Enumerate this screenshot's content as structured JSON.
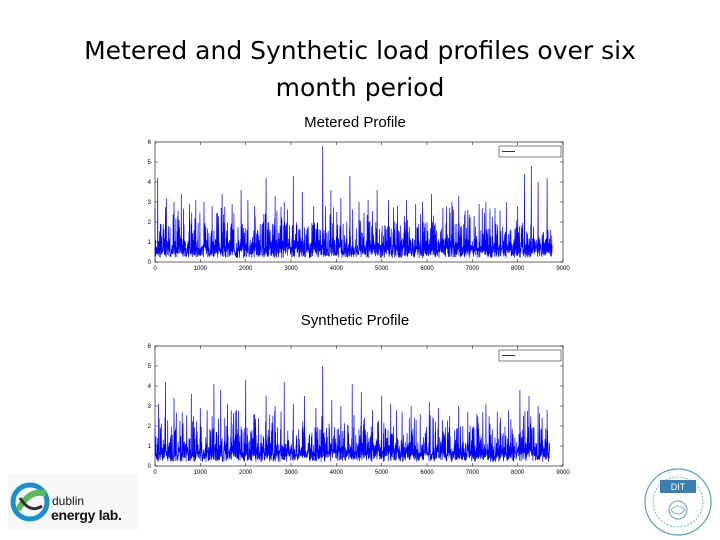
{
  "slide": {
    "title": "Metered and Synthetic load profiles over six month period"
  },
  "logos": {
    "dublin": "dublin",
    "energy_lab": "energy lab.",
    "dit": "DIT"
  },
  "colors": {
    "series": "#0000ff",
    "axis": "#000000"
  },
  "chart_data": [
    {
      "type": "line",
      "title": "Metered Profile",
      "xlabel": "",
      "ylabel": "",
      "xlim": [
        0,
        9000
      ],
      "ylim": [
        0,
        6
      ],
      "xticks": [
        "0",
        "1000",
        "2000",
        "3000",
        "4000",
        "5000",
        "6000",
        "7000",
        "8000",
        "9000"
      ],
      "yticks": [
        "0",
        "1",
        "2",
        "3",
        "4",
        "5",
        "6"
      ],
      "legend": {
        "position": "top-right",
        "entries": [
          ""
        ]
      },
      "series": [
        {
          "name": "",
          "end_x": 8760,
          "peaks": [
            [
              60,
              4.2
            ],
            [
              250,
              3.2
            ],
            [
              420,
              3.0
            ],
            [
              580,
              3.4
            ],
            [
              760,
              2.9
            ],
            [
              900,
              3.1
            ],
            [
              1080,
              3.0
            ],
            [
              1260,
              2.8
            ],
            [
              1480,
              3.4
            ],
            [
              1700,
              2.9
            ],
            [
              1900,
              3.6
            ],
            [
              2050,
              3.1
            ],
            [
              2200,
              2.8
            ],
            [
              2450,
              4.2
            ],
            [
              2650,
              3.3
            ],
            [
              2850,
              3.0
            ],
            [
              3050,
              4.3
            ],
            [
              3250,
              3.5
            ],
            [
              3500,
              2.8
            ],
            [
              3700,
              5.8
            ],
            [
              3880,
              3.6
            ],
            [
              4100,
              3.2
            ],
            [
              4300,
              4.3
            ],
            [
              4500,
              3.0
            ],
            [
              4700,
              3.1
            ],
            [
              4900,
              3.6
            ],
            [
              5150,
              3.1
            ],
            [
              5350,
              2.8
            ],
            [
              5550,
              3.1
            ],
            [
              5750,
              2.9
            ],
            [
              5900,
              3.0
            ],
            [
              6100,
              3.4
            ],
            [
              6350,
              2.7
            ],
            [
              6550,
              3.0
            ],
            [
              6700,
              3.3
            ],
            [
              6900,
              2.6
            ],
            [
              7150,
              2.9
            ],
            [
              7300,
              3.0
            ],
            [
              7500,
              2.7
            ],
            [
              7750,
              3.0
            ],
            [
              8000,
              2.8
            ],
            [
              8150,
              4.4
            ],
            [
              8300,
              4.8
            ],
            [
              8450,
              4.0
            ],
            [
              8650,
              4.2
            ]
          ]
        }
      ]
    },
    {
      "type": "line",
      "title": "Synthetic Profile",
      "xlabel": "",
      "ylabel": "",
      "xlim": [
        0,
        9000
      ],
      "ylim": [
        0,
        6
      ],
      "xticks": [
        "0",
        "1000",
        "2000",
        "3000",
        "4000",
        "5000",
        "6000",
        "7000",
        "8000",
        "9000"
      ],
      "yticks": [
        "0",
        "1",
        "2",
        "3",
        "4",
        "5",
        "6"
      ],
      "legend": {
        "position": "top-right",
        "entries": [
          ""
        ]
      },
      "series": [
        {
          "name": "",
          "end_x": 8700,
          "peaks": [
            [
              80,
              3.1
            ],
            [
              230,
              4.2
            ],
            [
              420,
              3.4
            ],
            [
              600,
              2.7
            ],
            [
              800,
              3.6
            ],
            [
              1000,
              2.9
            ],
            [
              1300,
              4.1
            ],
            [
              1450,
              3.8
            ],
            [
              1600,
              3.1
            ],
            [
              1800,
              2.8
            ],
            [
              2000,
              4.3
            ],
            [
              2200,
              2.6
            ],
            [
              2450,
              3.5
            ],
            [
              2650,
              3.0
            ],
            [
              2850,
              4.2
            ],
            [
              3050,
              3.1
            ],
            [
              3300,
              3.5
            ],
            [
              3550,
              2.9
            ],
            [
              3700,
              5.0
            ],
            [
              3900,
              3.3
            ],
            [
              4100,
              3.0
            ],
            [
              4350,
              4.1
            ],
            [
              4550,
              3.7
            ],
            [
              4800,
              2.8
            ],
            [
              5000,
              3.5
            ],
            [
              5200,
              3.1
            ],
            [
              5450,
              2.7
            ],
            [
              5650,
              3.0
            ],
            [
              5850,
              2.6
            ],
            [
              6050,
              3.2
            ],
            [
              6250,
              2.9
            ],
            [
              6500,
              2.5
            ],
            [
              6700,
              3.0
            ],
            [
              6900,
              2.7
            ],
            [
              7100,
              2.6
            ],
            [
              7300,
              3.1
            ],
            [
              7550,
              2.7
            ],
            [
              7800,
              2.8
            ],
            [
              8050,
              3.8
            ],
            [
              8250,
              3.5
            ],
            [
              8450,
              3.0
            ],
            [
              8650,
              2.8
            ]
          ]
        }
      ]
    }
  ]
}
